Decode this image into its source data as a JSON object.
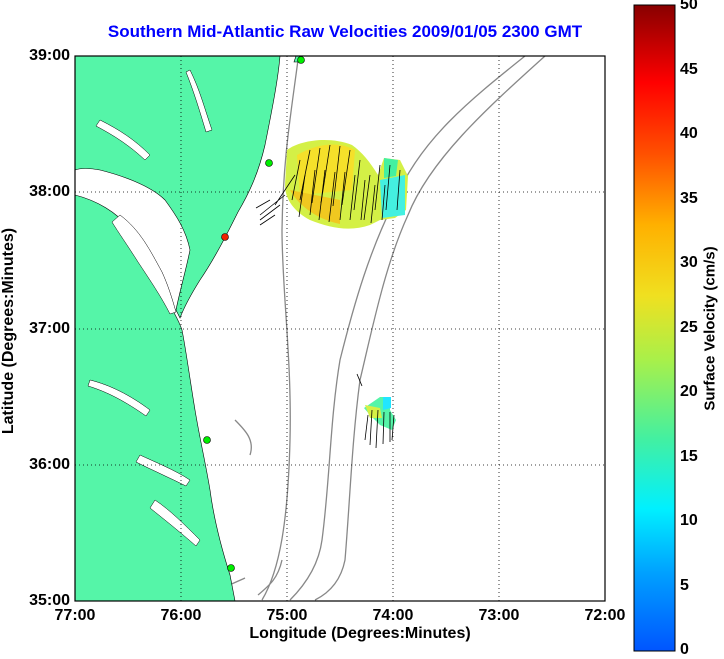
{
  "title": "Southern Mid-Atlantic Raw Velocities 2009/01/05 2300 GMT",
  "axes": {
    "xlabel": "Longitude (Degrees:Minutes)",
    "ylabel": "Latitude (Degrees:Minutes)",
    "xticks": [
      "77:00",
      "76:00",
      "75:00",
      "74:00",
      "73:00",
      "72:00"
    ],
    "yticks": [
      "39:00",
      "38:00",
      "37:00",
      "36:00",
      "35:00"
    ]
  },
  "colorbar": {
    "label": "Surface Velocity (cm/s)",
    "ticks": [
      "50",
      "45",
      "40",
      "35",
      "30",
      "25",
      "20",
      "15",
      "10",
      "5",
      "0"
    ],
    "min": 0,
    "max": 50,
    "colormap": "jet"
  },
  "map_extent": {
    "lon": [
      -77,
      -72
    ],
    "lat": [
      35,
      39
    ]
  },
  "colors": {
    "land": "#55f5a8",
    "title": "#0000ff",
    "contour": "#888888"
  },
  "stations": [
    "green",
    "green",
    "red",
    "green",
    "green"
  ]
}
